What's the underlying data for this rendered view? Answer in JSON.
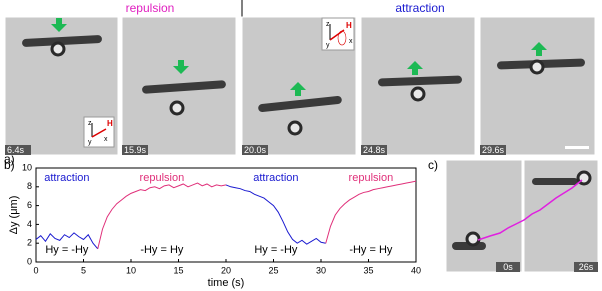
{
  "panel_labels": [
    "a)",
    "b)",
    "c)"
  ],
  "panel_a": {
    "repulsion": "repulsion",
    "attraction": "attraction",
    "frame_times": [
      "6.4s",
      "15.9s",
      "20.0s",
      "24.8s",
      "29.6s"
    ],
    "inset_labels": [
      "z",
      "H",
      "y",
      "x"
    ]
  },
  "panel_c": {
    "frame_times": [
      "0s",
      "26s"
    ]
  },
  "chart_data": {
    "type": "line",
    "label": "b)",
    "x_label": "time (s)",
    "y_label": "Δy (μm)",
    "xlim": [
      0,
      40
    ],
    "xticks": [
      0,
      5,
      10,
      15,
      20,
      25,
      30,
      35,
      40
    ],
    "ylim": [
      0,
      10
    ],
    "yticks": [
      0,
      2,
      4,
      6,
      8,
      10
    ],
    "series": [
      {
        "name": "attraction",
        "color": "#1a1ad0",
        "x": [
          0,
          0.5,
          1,
          1.5,
          2,
          2.5,
          3,
          3.5,
          4,
          4.5,
          5,
          5.5,
          6,
          6.5
        ],
        "values": [
          2.4,
          2.8,
          2.2,
          3.0,
          2.5,
          2.3,
          2.9,
          2.6,
          3.1,
          2.7,
          2.4,
          2.9,
          2.0,
          1.4
        ]
      },
      {
        "name": "repulsion",
        "color": "#e0307a",
        "x": [
          6.5,
          7,
          7.5,
          8,
          8.5,
          9,
          9.5,
          10,
          10.5,
          11,
          11.5,
          12,
          12.5,
          13,
          13.5,
          14,
          14.5,
          15,
          15.5,
          16,
          16.5,
          17,
          17.5,
          18,
          18.5,
          19,
          19.5,
          20
        ],
        "values": [
          1.4,
          3.5,
          4.8,
          5.6,
          6.2,
          6.6,
          7.0,
          7.3,
          7.5,
          7.7,
          7.6,
          7.9,
          8.0,
          7.8,
          8.1,
          8.2,
          7.9,
          8.1,
          8.3,
          8.0,
          8.2,
          8.4,
          8.1,
          8.3,
          8.0,
          8.2,
          8.1,
          8.2
        ]
      },
      {
        "name": "attraction",
        "color": "#1a1ad0",
        "x": [
          20,
          20.5,
          21,
          21.5,
          22,
          22.5,
          23,
          23.5,
          24,
          24.5,
          25,
          25.5,
          26,
          26.5,
          27,
          27.5,
          28,
          28.5,
          29,
          29.5,
          30,
          30.5
        ],
        "values": [
          8.2,
          8.0,
          7.9,
          7.8,
          7.6,
          7.5,
          7.2,
          7.0,
          6.8,
          6.4,
          6.0,
          5.3,
          4.3,
          3.2,
          2.4,
          2.0,
          2.3,
          1.9,
          2.2,
          2.5,
          2.1,
          2.0
        ]
      },
      {
        "name": "repulsion",
        "color": "#e0307a",
        "x": [
          30.5,
          31,
          31.5,
          32,
          32.5,
          33,
          33.5,
          34,
          34.5,
          35,
          35.5,
          36,
          36.5,
          37,
          37.5,
          38,
          38.5,
          39,
          39.5,
          40
        ],
        "values": [
          2.0,
          3.8,
          5.0,
          5.7,
          6.2,
          6.6,
          6.9,
          7.2,
          7.4,
          7.5,
          7.7,
          7.8,
          7.9,
          8.0,
          8.1,
          8.2,
          8.3,
          8.4,
          8.5,
          8.6
        ]
      }
    ],
    "field_annotations": [
      "Hy = -Hy",
      "-Hy = Hy",
      "Hy = -Hy",
      "-Hy = Hy"
    ]
  }
}
